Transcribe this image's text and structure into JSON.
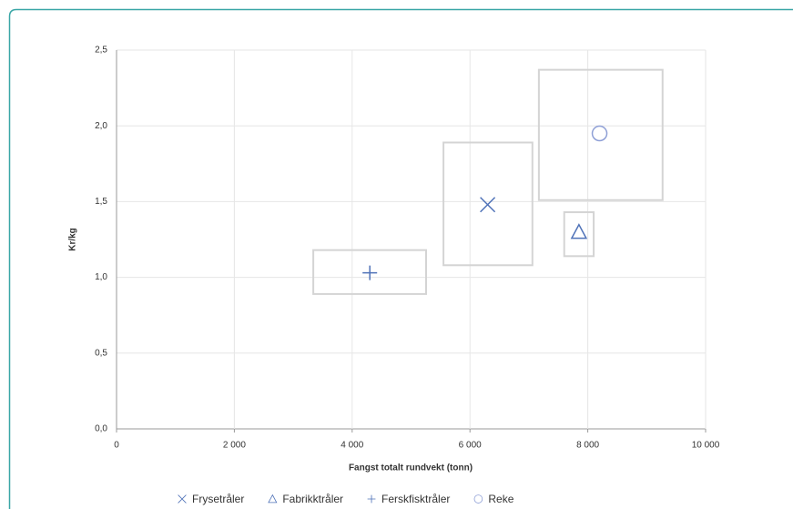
{
  "chart_data": {
    "type": "scatter",
    "x_label": "Fangst totalt rundvekt (tonn)",
    "y_label": "Kr/kg",
    "xlim": [
      0,
      10000
    ],
    "ylim": [
      0,
      2.5
    ],
    "xticks": [
      0,
      {
        "value": 2000,
        "label": "2 000"
      },
      {
        "value": 4000,
        "label": "4 000"
      },
      {
        "value": 6000,
        "label": "6 000"
      },
      {
        "value": 8000,
        "label": "8 000"
      },
      {
        "value": 10000,
        "label": "10 000"
      }
    ],
    "yticks": [
      {
        "value": 0,
        "label": "0,0"
      },
      {
        "value": 0.5,
        "label": "0,5"
      },
      {
        "value": 1,
        "label": "1,0"
      },
      {
        "value": 1.5,
        "label": "1,5"
      },
      {
        "value": 2,
        "label": "2,0"
      },
      {
        "value": 2.5,
        "label": "2,5"
      }
    ],
    "grid": true,
    "legend": "bottom",
    "series": [
      {
        "name": "Frysetråler",
        "marker": "x",
        "color": "#4f72b8",
        "x": [
          6300
        ],
        "values": [
          1.48
        ],
        "xmin": 5550,
        "xmax": 7060,
        "ymin": 1.08,
        "ymax": 1.89
      },
      {
        "name": "Fabrikktråler",
        "marker": "triangle",
        "color": "#4f72b8",
        "x": [
          7850
        ],
        "values": [
          1.3
        ],
        "xmin": 7600,
        "xmax": 8100,
        "ymin": 1.14,
        "ymax": 1.43
      },
      {
        "name": "Ferskfisktråler",
        "marker": "plus",
        "color": "#4f72b8",
        "x": [
          4300
        ],
        "values": [
          1.03
        ],
        "xmin": 3340,
        "xmax": 5255,
        "ymin": 0.89,
        "ymax": 1.18
      },
      {
        "name": "Reke",
        "marker": "circle",
        "color": "#8e9fd6",
        "x": [
          8200
        ],
        "values": [
          1.95
        ],
        "xmin": 7170,
        "xmax": 9270,
        "ymin": 1.51,
        "ymax": 2.37
      }
    ]
  }
}
